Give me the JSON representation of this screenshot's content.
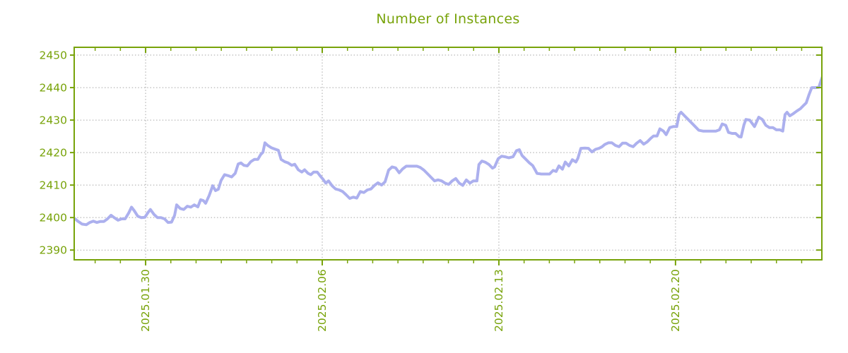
{
  "title": "Number of Instances",
  "colors": {
    "axis_green": "#78a30a",
    "grid_gray": "#a6a6a6",
    "line_lavender": "#acb0ee",
    "background": "#ffffff"
  },
  "chart_data": {
    "type": "line",
    "title": "Number of Instances",
    "series_name": "instances",
    "legend": "none",
    "grid": "dotted",
    "x_axis": {
      "unit": "date",
      "tick_labels": [
        "2025.01.30",
        "2025.02.06",
        "2025.02.13",
        "2025.02.20"
      ],
      "tick_days": [
        2.83,
        9.83,
        16.83,
        23.83
      ],
      "minor_tick_first_day": 0.83,
      "minor_tick_interval_days": 1,
      "minor_tick_count": 29,
      "range_days": [
        0,
        29.63
      ]
    },
    "y_axis": {
      "ticks": [
        2390,
        2400,
        2410,
        2420,
        2430,
        2440,
        2450
      ],
      "range": [
        2387.0,
        2452.4
      ]
    },
    "points": [
      [
        0.0,
        2399.8
      ],
      [
        0.14,
        2398.9
      ],
      [
        0.31,
        2398.0
      ],
      [
        0.48,
        2397.8
      ],
      [
        0.62,
        2398.5
      ],
      [
        0.76,
        2398.9
      ],
      [
        0.9,
        2398.5
      ],
      [
        1.04,
        2398.8
      ],
      [
        1.18,
        2398.8
      ],
      [
        1.32,
        2399.6
      ],
      [
        1.46,
        2400.7
      ],
      [
        1.6,
        2399.9
      ],
      [
        1.74,
        2399.2
      ],
      [
        1.88,
        2399.6
      ],
      [
        2.02,
        2399.6
      ],
      [
        2.16,
        2401.4
      ],
      [
        2.27,
        2403.2
      ],
      [
        2.38,
        2402.1
      ],
      [
        2.52,
        2400.4
      ],
      [
        2.66,
        2400.0
      ],
      [
        2.8,
        2400.1
      ],
      [
        2.94,
        2401.7
      ],
      [
        3.02,
        2402.5
      ],
      [
        3.16,
        2401.0
      ],
      [
        3.3,
        2400.0
      ],
      [
        3.44,
        2400.0
      ],
      [
        3.58,
        2399.6
      ],
      [
        3.72,
        2398.5
      ],
      [
        3.86,
        2398.6
      ],
      [
        3.98,
        2400.7
      ],
      [
        4.06,
        2403.9
      ],
      [
        4.2,
        2402.8
      ],
      [
        4.34,
        2402.5
      ],
      [
        4.48,
        2403.5
      ],
      [
        4.62,
        2403.2
      ],
      [
        4.76,
        2403.9
      ],
      [
        4.9,
        2403.3
      ],
      [
        5.01,
        2405.5
      ],
      [
        5.12,
        2405.2
      ],
      [
        5.21,
        2404.4
      ],
      [
        5.35,
        2406.8
      ],
      [
        5.49,
        2409.8
      ],
      [
        5.6,
        2408.3
      ],
      [
        5.71,
        2408.7
      ],
      [
        5.82,
        2411.4
      ],
      [
        5.96,
        2413.2
      ],
      [
        6.1,
        2412.9
      ],
      [
        6.24,
        2412.5
      ],
      [
        6.38,
        2413.6
      ],
      [
        6.5,
        2416.5
      ],
      [
        6.61,
        2416.8
      ],
      [
        6.72,
        2416.1
      ],
      [
        6.86,
        2415.9
      ],
      [
        7.0,
        2417.2
      ],
      [
        7.14,
        2417.9
      ],
      [
        7.28,
        2417.9
      ],
      [
        7.39,
        2419.4
      ],
      [
        7.48,
        2420.1
      ],
      [
        7.56,
        2423.0
      ],
      [
        7.67,
        2422.2
      ],
      [
        7.81,
        2421.5
      ],
      [
        7.95,
        2421.1
      ],
      [
        8.09,
        2420.7
      ],
      [
        8.2,
        2417.9
      ],
      [
        8.34,
        2417.2
      ],
      [
        8.48,
        2416.8
      ],
      [
        8.62,
        2416.1
      ],
      [
        8.74,
        2416.4
      ],
      [
        8.88,
        2414.7
      ],
      [
        9.02,
        2414.0
      ],
      [
        9.13,
        2414.7
      ],
      [
        9.27,
        2413.6
      ],
      [
        9.38,
        2413.2
      ],
      [
        9.49,
        2414.0
      ],
      [
        9.63,
        2414.0
      ],
      [
        9.74,
        2412.9
      ],
      [
        9.86,
        2411.8
      ],
      [
        9.97,
        2410.6
      ],
      [
        10.08,
        2411.3
      ],
      [
        10.22,
        2409.8
      ],
      [
        10.36,
        2408.8
      ],
      [
        10.5,
        2408.5
      ],
      [
        10.64,
        2408.0
      ],
      [
        10.78,
        2407.0
      ],
      [
        10.92,
        2405.9
      ],
      [
        11.06,
        2406.3
      ],
      [
        11.2,
        2406.0
      ],
      [
        11.34,
        2408.0
      ],
      [
        11.48,
        2407.7
      ],
      [
        11.62,
        2408.5
      ],
      [
        11.76,
        2408.8
      ],
      [
        11.9,
        2409.9
      ],
      [
        12.04,
        2410.7
      ],
      [
        12.18,
        2410.0
      ],
      [
        12.32,
        2411.0
      ],
      [
        12.46,
        2414.6
      ],
      [
        12.6,
        2415.6
      ],
      [
        12.74,
        2415.3
      ],
      [
        12.88,
        2413.8
      ],
      [
        13.02,
        2415.0
      ],
      [
        13.16,
        2415.8
      ],
      [
        13.36,
        2415.8
      ],
      [
        13.58,
        2415.8
      ],
      [
        13.72,
        2415.4
      ],
      [
        13.86,
        2414.6
      ],
      [
        14.0,
        2413.5
      ],
      [
        14.14,
        2412.4
      ],
      [
        14.28,
        2411.3
      ],
      [
        14.42,
        2411.6
      ],
      [
        14.56,
        2411.3
      ],
      [
        14.7,
        2410.6
      ],
      [
        14.84,
        2410.2
      ],
      [
        14.98,
        2411.3
      ],
      [
        15.12,
        2412.0
      ],
      [
        15.26,
        2410.6
      ],
      [
        15.4,
        2409.9
      ],
      [
        15.54,
        2411.6
      ],
      [
        15.68,
        2410.6
      ],
      [
        15.82,
        2411.3
      ],
      [
        15.96,
        2411.3
      ],
      [
        16.04,
        2416.3
      ],
      [
        16.16,
        2417.4
      ],
      [
        16.3,
        2417.0
      ],
      [
        16.44,
        2416.3
      ],
      [
        16.58,
        2415.2
      ],
      [
        16.66,
        2415.6
      ],
      [
        16.8,
        2418.1
      ],
      [
        16.94,
        2418.9
      ],
      [
        17.08,
        2418.7
      ],
      [
        17.22,
        2418.4
      ],
      [
        17.39,
        2418.7
      ],
      [
        17.53,
        2420.6
      ],
      [
        17.64,
        2420.9
      ],
      [
        17.75,
        2419.1
      ],
      [
        17.89,
        2418.0
      ],
      [
        18.03,
        2416.9
      ],
      [
        18.17,
        2416.0
      ],
      [
        18.26,
        2414.8
      ],
      [
        18.34,
        2413.6
      ],
      [
        18.51,
        2413.4
      ],
      [
        18.68,
        2413.4
      ],
      [
        18.84,
        2413.4
      ],
      [
        18.98,
        2414.5
      ],
      [
        19.1,
        2414.2
      ],
      [
        19.21,
        2415.9
      ],
      [
        19.35,
        2414.9
      ],
      [
        19.46,
        2417.1
      ],
      [
        19.6,
        2415.9
      ],
      [
        19.74,
        2417.8
      ],
      [
        19.88,
        2417.1
      ],
      [
        19.96,
        2418.2
      ],
      [
        20.08,
        2421.3
      ],
      [
        20.24,
        2421.4
      ],
      [
        20.38,
        2421.3
      ],
      [
        20.52,
        2420.2
      ],
      [
        20.66,
        2421.0
      ],
      [
        20.8,
        2421.3
      ],
      [
        20.92,
        2421.8
      ],
      [
        21.03,
        2422.5
      ],
      [
        21.17,
        2423.0
      ],
      [
        21.31,
        2423.0
      ],
      [
        21.45,
        2422.2
      ],
      [
        21.59,
        2421.8
      ],
      [
        21.73,
        2422.9
      ],
      [
        21.87,
        2422.9
      ],
      [
        22.01,
        2422.2
      ],
      [
        22.15,
        2421.8
      ],
      [
        22.29,
        2422.9
      ],
      [
        22.43,
        2423.7
      ],
      [
        22.57,
        2422.6
      ],
      [
        22.71,
        2423.3
      ],
      [
        22.85,
        2424.4
      ],
      [
        22.96,
        2425.1
      ],
      [
        23.1,
        2425.1
      ],
      [
        23.21,
        2427.3
      ],
      [
        23.35,
        2426.6
      ],
      [
        23.46,
        2425.5
      ],
      [
        23.6,
        2427.7
      ],
      [
        23.74,
        2428.0
      ],
      [
        23.88,
        2428.0
      ],
      [
        23.97,
        2431.7
      ],
      [
        24.05,
        2432.4
      ],
      [
        24.19,
        2431.3
      ],
      [
        24.33,
        2430.2
      ],
      [
        24.47,
        2429.1
      ],
      [
        24.61,
        2428.0
      ],
      [
        24.75,
        2426.9
      ],
      [
        24.92,
        2426.6
      ],
      [
        25.09,
        2426.6
      ],
      [
        25.26,
        2426.6
      ],
      [
        25.43,
        2426.6
      ],
      [
        25.57,
        2427.0
      ],
      [
        25.68,
        2428.8
      ],
      [
        25.82,
        2428.4
      ],
      [
        25.93,
        2426.2
      ],
      [
        26.07,
        2425.9
      ],
      [
        26.21,
        2425.9
      ],
      [
        26.35,
        2424.9
      ],
      [
        26.43,
        2424.8
      ],
      [
        26.54,
        2428.5
      ],
      [
        26.62,
        2430.2
      ],
      [
        26.77,
        2430.0
      ],
      [
        26.96,
        2428.0
      ],
      [
        27.13,
        2430.9
      ],
      [
        27.27,
        2430.2
      ],
      [
        27.41,
        2428.4
      ],
      [
        27.55,
        2427.7
      ],
      [
        27.69,
        2427.7
      ],
      [
        27.83,
        2427.0
      ],
      [
        27.97,
        2427.0
      ],
      [
        28.08,
        2426.6
      ],
      [
        28.17,
        2431.7
      ],
      [
        28.25,
        2432.4
      ],
      [
        28.36,
        2431.3
      ],
      [
        28.5,
        2432.0
      ],
      [
        28.64,
        2432.8
      ],
      [
        28.78,
        2433.5
      ],
      [
        28.92,
        2434.6
      ],
      [
        29.01,
        2435.3
      ],
      [
        29.12,
        2437.8
      ],
      [
        29.23,
        2440.0
      ],
      [
        29.37,
        2440.0
      ],
      [
        29.51,
        2440.1
      ],
      [
        29.6,
        2442.2
      ],
      [
        29.65,
        2443.3
      ]
    ]
  }
}
